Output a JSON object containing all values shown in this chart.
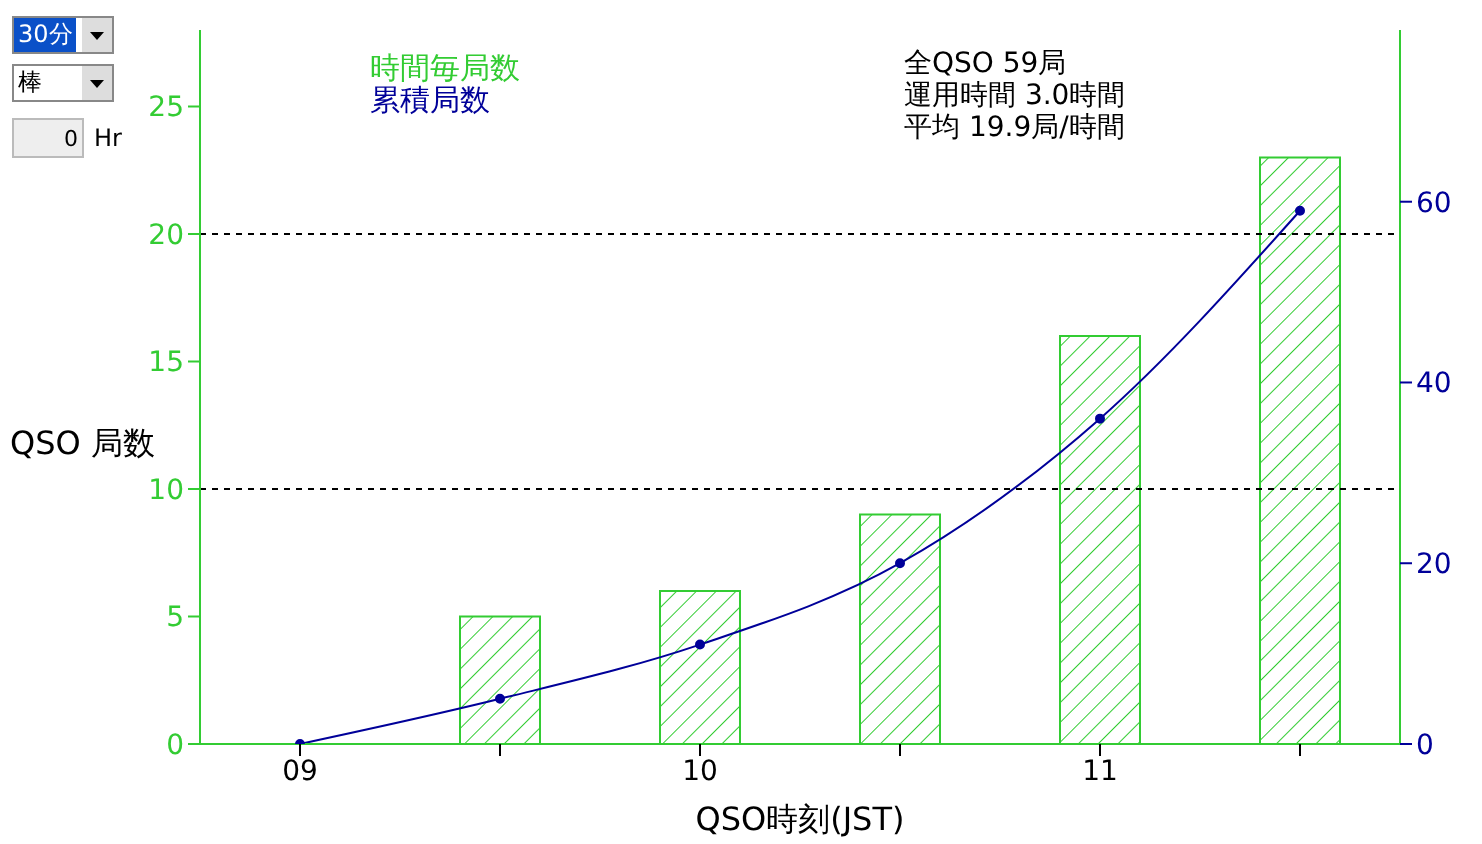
{
  "chart_data": {
    "type": "bar",
    "xlabel": "QSO時刻(JST)",
    "ylabel": "QSO 局数",
    "categories": [
      "09",
      null,
      "10",
      null,
      "11",
      null
    ],
    "series": [
      {
        "name": "時間毎局数",
        "color": "#33cc33",
        "values": [
          0,
          5,
          6,
          9,
          16,
          23
        ]
      },
      {
        "name": "累積局数",
        "type": "line",
        "color": "#000099",
        "axis": "y2",
        "values": [
          0,
          5,
          11,
          20,
          36,
          59
        ]
      }
    ],
    "ylim": [
      0,
      28
    ],
    "yticks": [
      0,
      5,
      10,
      15,
      20,
      25
    ],
    "y2lim": [
      0,
      79
    ],
    "y2ticks": [
      0,
      20,
      40,
      60
    ],
    "ref_lines": [
      {
        "axis": "y",
        "value": 10,
        "color": "#000000",
        "line_style": "dashed"
      },
      {
        "axis": "y",
        "value": 20,
        "color": "#000000",
        "line_style": "dashed"
      }
    ],
    "legend": "top left",
    "marker": "circle",
    "grid": false,
    "annotations": [
      "全QSO 59局",
      "運用時間 3.0時間",
      "平均 19.9局/時間",
      "30分",
      "棒",
      "0",
      "Hr"
    ]
  }
}
